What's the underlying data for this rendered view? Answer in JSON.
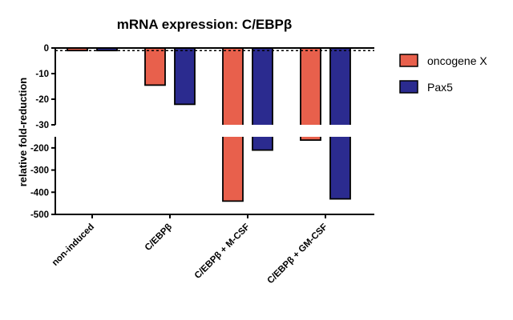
{
  "chart_data": {
    "type": "bar",
    "title": "mRNA expression: C/EBPβ",
    "xlabel": "",
    "ylabel": "relative fold-reduction",
    "categories": [
      "non-induced",
      "C/EBPβ",
      "C/EBPβ + M-CSF",
      "C/EBPβ + GM-CSF"
    ],
    "series": [
      {
        "name": "oncogene X",
        "color": "#e8604c",
        "values": [
          -1,
          -14.5,
          -440,
          -165
        ]
      },
      {
        "name": "Pax5",
        "color": "#2b2b8f",
        "values": [
          -1,
          -22,
          -210,
          -430
        ]
      }
    ],
    "y_axis": {
      "broken": true,
      "upper_segment": {
        "range": [
          -30,
          0
        ],
        "ticks": [
          "0",
          "-10",
          "-20",
          "-30"
        ]
      },
      "lower_segment": {
        "range": [
          -500,
          -150
        ],
        "ticks": [
          "-200",
          "-300",
          "-400",
          "-500"
        ]
      }
    },
    "reference_line": {
      "value": -1,
      "style": "dashed"
    },
    "legend": "right",
    "grid": false
  }
}
